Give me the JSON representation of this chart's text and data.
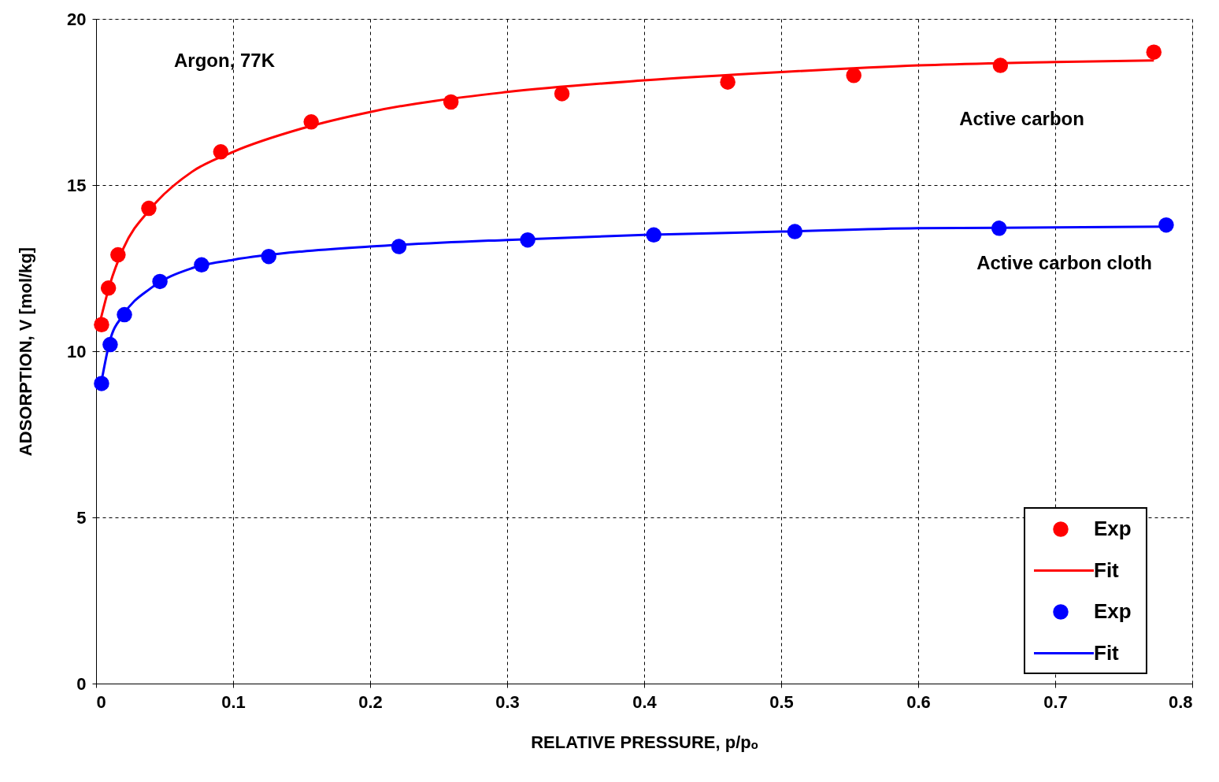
{
  "chart_data": {
    "type": "scatter",
    "xlabel": "RELATIVE PRESSURE, p/pₒ",
    "ylabel": "ADSORPTION, V [mol/kg]",
    "xlim": [
      0,
      0.8
    ],
    "xticks": [
      0,
      0.1,
      0.2,
      0.3,
      0.4,
      0.5,
      0.6,
      0.7,
      0.8
    ],
    "ylim": [
      0,
      20
    ],
    "yticks": [
      0,
      5,
      10,
      15,
      20
    ],
    "grid": true,
    "legend": "bottom right",
    "series": [
      {
        "name": "Exp",
        "marker": "circle",
        "color": "#ff0000",
        "x": [
          0.004,
          0.009,
          0.016,
          0.0385,
          0.091,
          0.157,
          0.259,
          0.34,
          0.461,
          0.553,
          0.66,
          0.772
        ],
        "values": [
          10.8,
          11.9,
          12.9,
          14.3,
          16.0,
          16.9,
          17.5,
          17.75,
          18.1,
          18.3,
          18.6,
          19.0
        ]
      },
      {
        "name": "Fit",
        "type": "line",
        "color": "#ff0000",
        "x": [
          0.003,
          0.01,
          0.02,
          0.04,
          0.07,
          0.1,
          0.15,
          0.2,
          0.3,
          0.4,
          0.5,
          0.6,
          0.7,
          0.772
        ],
        "values": [
          10.9,
          12.0,
          13.1,
          14.3,
          15.4,
          16.0,
          16.7,
          17.2,
          17.8,
          18.15,
          18.4,
          18.6,
          18.7,
          18.75
        ]
      },
      {
        "name": "Exp",
        "marker": "circle",
        "color": "#0000ff",
        "x": [
          0.004,
          0.0103,
          0.0207,
          0.0466,
          0.077,
          0.126,
          0.221,
          0.315,
          0.407,
          0.51,
          0.659,
          0.781
        ],
        "values": [
          9.03,
          10.2,
          11.1,
          12.1,
          12.6,
          12.85,
          13.15,
          13.35,
          13.5,
          13.6,
          13.7,
          13.8
        ]
      },
      {
        "name": "Fit",
        "type": "line",
        "color": "#0000ff",
        "x": [
          0.004,
          0.01,
          0.02,
          0.04,
          0.07,
          0.1,
          0.15,
          0.2,
          0.3,
          0.4,
          0.5,
          0.6,
          0.781
        ],
        "values": [
          9.1,
          10.3,
          11.1,
          11.9,
          12.5,
          12.75,
          13.0,
          13.15,
          13.35,
          13.5,
          13.6,
          13.7,
          13.75
        ]
      }
    ],
    "annotations": [
      "Argon, 77K",
      "Active carbon",
      "Active carbon cloth"
    ]
  }
}
